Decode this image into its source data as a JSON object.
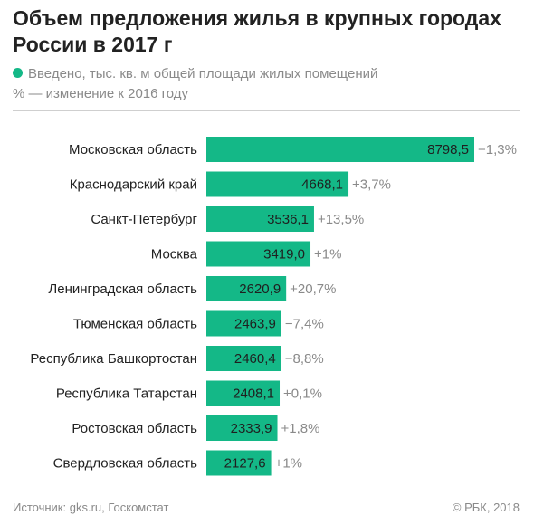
{
  "title": "Объем предложения жилья в крупных городах России в 2017 г",
  "legend": {
    "series_label": "Введено, тыс. кв. м общей площади жилых помещений",
    "change_note": "% — изменение к 2016 году"
  },
  "colors": {
    "bar": "#14b887",
    "value_text": "#1f1f1f",
    "change_text": "#8a8a8a",
    "label_text": "#222222"
  },
  "chart_data": {
    "type": "bar",
    "orientation": "horizontal",
    "categories": [
      "Московская область",
      "Краснодарский край",
      "Санкт-Петербург",
      "Москва",
      "Ленинградская область",
      "Тюменская область",
      "Республика Башкортостан",
      "Республика Татарстан",
      "Ростовская область",
      "Свердловская область"
    ],
    "values": [
      8798.5,
      4668.1,
      3536.1,
      3419.0,
      2620.9,
      2463.9,
      2460.4,
      2408.1,
      2333.9,
      2127.6
    ],
    "value_labels": [
      "8798,5",
      "4668,1",
      "3536,1",
      "3419,0",
      "2620,9",
      "2463,9",
      "2460,4",
      "2408,1",
      "2333,9",
      "2127,6"
    ],
    "change_labels": [
      "−1,3%",
      "+3,7%",
      "+13,5%",
      "+1%",
      "+20,7%",
      "−7,4%",
      "−8,8%",
      "+0,1%",
      "+1,8%",
      "+1%"
    ],
    "change_values": [
      -1.3,
      3.7,
      13.5,
      1.0,
      20.7,
      -7.4,
      -8.8,
      0.1,
      1.8,
      1.0
    ],
    "grid": false
  },
  "footer": {
    "source": "Источник: gks.ru, Госкомстат",
    "copyright": "© РБК, 2018"
  }
}
